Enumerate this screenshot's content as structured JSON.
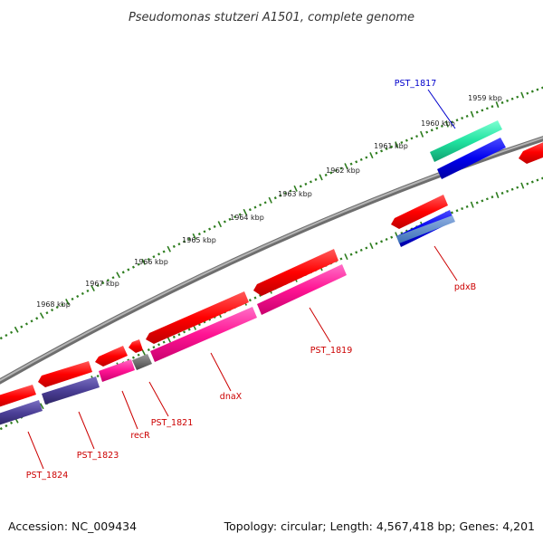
{
  "title": "Pseudomonas stutzeri A1501, complete genome",
  "footer": {
    "accession": "Accession: NC_009434",
    "summary": "Topology: circular; Length: 4,567,418 bp; Genes: 4,201"
  },
  "colors": {
    "backbone": "#808080",
    "tick": "#2e7d1f",
    "forward_cds": "#ff0000",
    "reverse_cds": "#ff1493",
    "label_default": "#cc0000",
    "label_highlight": "#0000cc"
  },
  "kbp_ticks": [
    "1959 kbp",
    "1960 kbp",
    "1961 kbp",
    "1962 kbp",
    "1963 kbp",
    "1964 kbp",
    "1965 kbp",
    "1966 kbp",
    "1967 kbp",
    "1968 kbp"
  ],
  "gene_labels": [
    {
      "text": "PST_1817",
      "color": "#0000cc"
    },
    {
      "text": "pdxB",
      "color": "#cc0000"
    },
    {
      "text": "PST_1819",
      "color": "#cc0000"
    },
    {
      "text": "dnaX",
      "color": "#cc0000"
    },
    {
      "text": "PST_1821",
      "color": "#cc0000"
    },
    {
      "text": "recR",
      "color": "#cc0000"
    },
    {
      "text": "PST_1823",
      "color": "#cc0000"
    },
    {
      "text": "PST_1824",
      "color": "#cc0000"
    }
  ]
}
